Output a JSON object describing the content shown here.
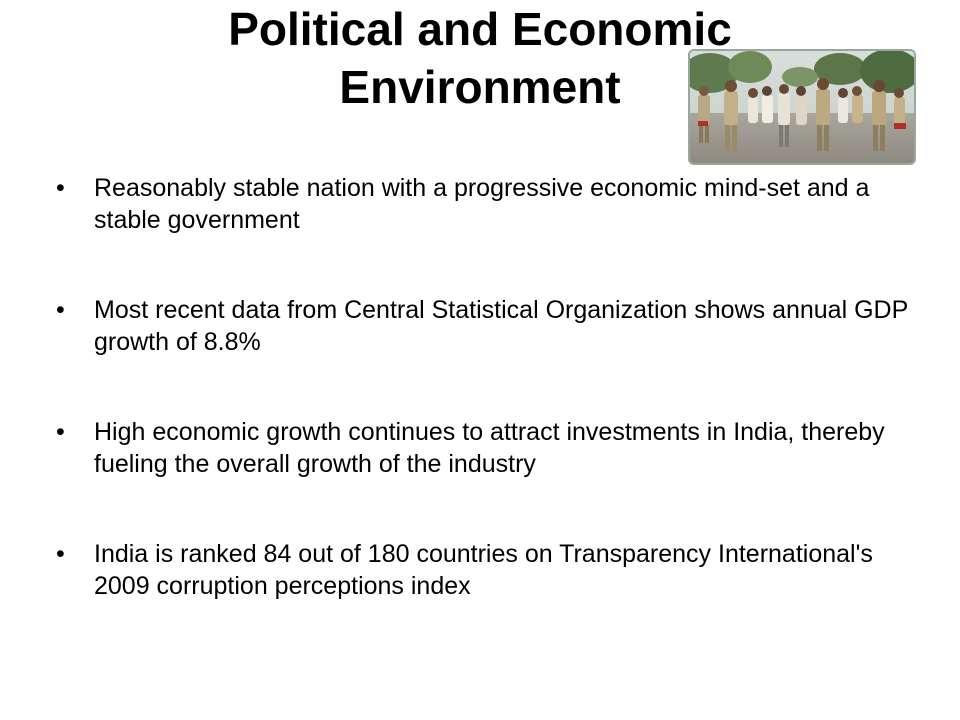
{
  "slide": {
    "title_line1": "Political and Economic",
    "title_line2": "Environment",
    "photo_description_icon": "photo-image",
    "bullet_glyph": "•",
    "bullets": [
      "Reasonably stable nation with a progressive economic mind-set and a stable government",
      "Most recent data from Central Statistical Organization shows annual GDP growth of 8.8%",
      "High economic growth continues to attract investments in India, thereby fueling the overall growth of the industry",
      "India is ranked 84 out of 180 countries on Transparency International's 2009 corruption perceptions index"
    ]
  }
}
